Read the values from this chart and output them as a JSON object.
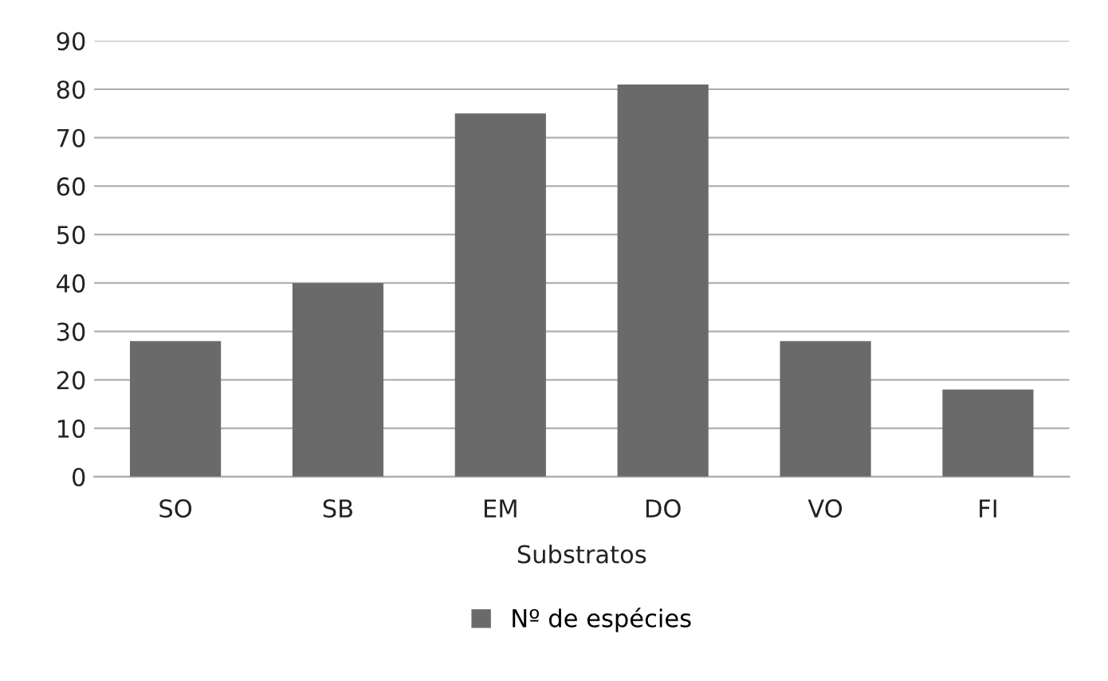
{
  "chart_data": {
    "type": "bar",
    "xlabel": "Substratos",
    "categories": [
      "SO",
      "SB",
      "EM",
      "DO",
      "VO",
      "FI"
    ],
    "series": [
      {
        "name": "Nº de espécies",
        "color": "#6a6a6a",
        "values": [
          28,
          40,
          75,
          81,
          28,
          18
        ]
      }
    ],
    "ylim": [
      0,
      90
    ],
    "yticks": [
      0,
      10,
      20,
      30,
      40,
      50,
      60,
      70,
      80,
      90
    ],
    "grid": "y",
    "legend": "bottom"
  }
}
